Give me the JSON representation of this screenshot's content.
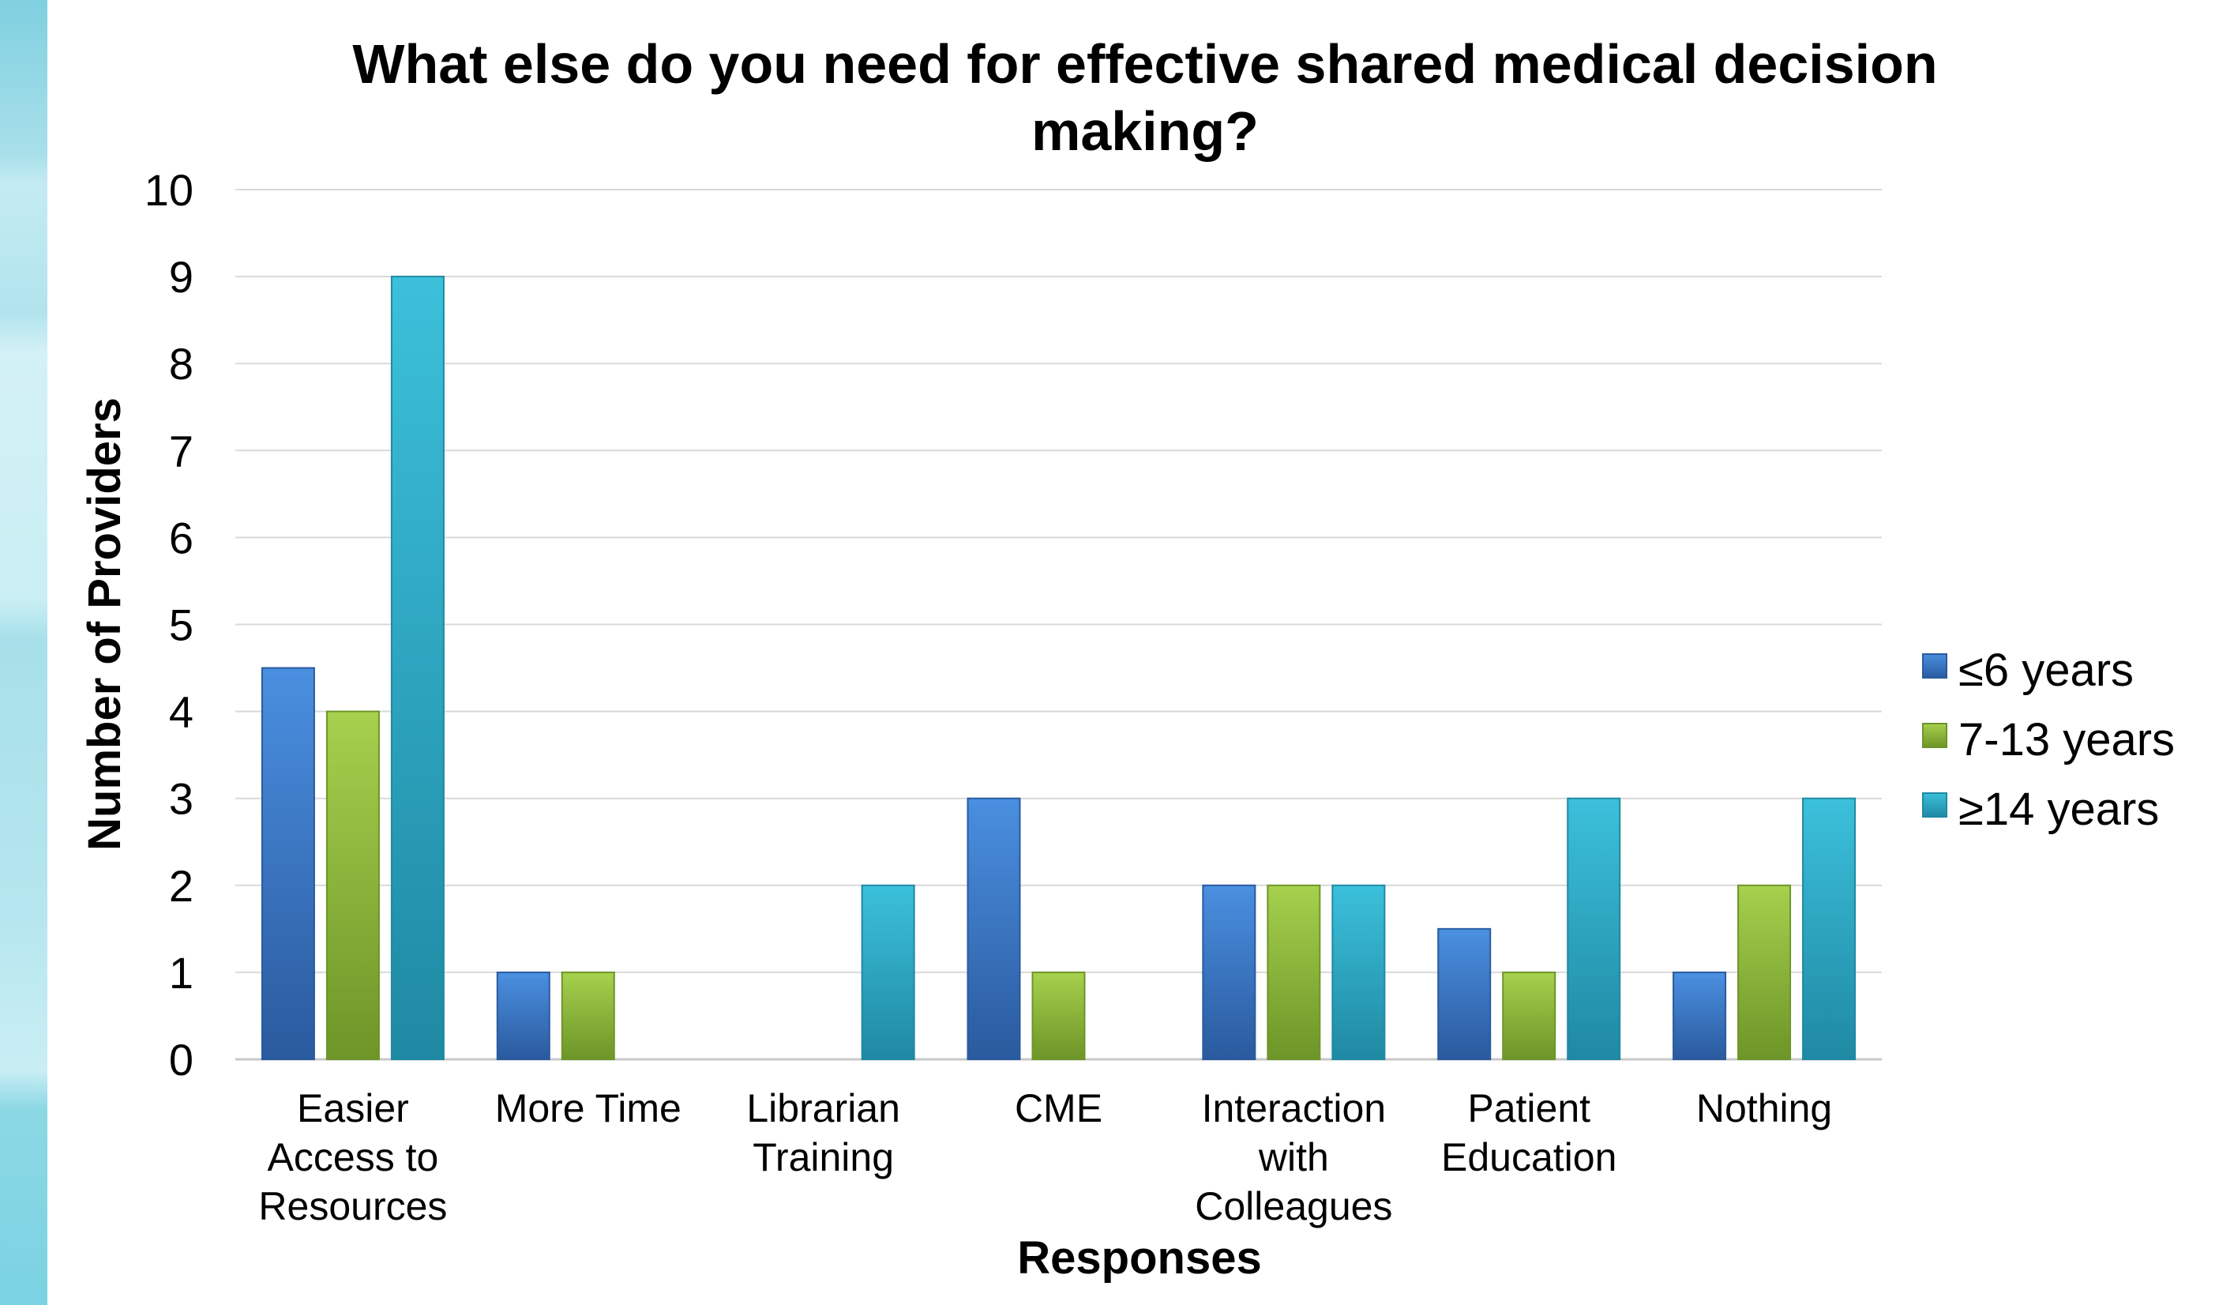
{
  "chart_data": {
    "type": "bar",
    "title": "What else do you need for effective shared medical decision making?",
    "title_lines": [
      "What else do you need for effective shared medical decision",
      "making?"
    ],
    "xlabel": "Responses",
    "ylabel": "Number of Providers",
    "ylim": [
      0,
      10
    ],
    "yticks": [
      0,
      1,
      2,
      3,
      4,
      5,
      6,
      7,
      8,
      9,
      10
    ],
    "grid": true,
    "legend_position": "right",
    "categories": [
      "Easier Access to Resources",
      "More Time",
      "Librarian Training",
      "CME",
      "Interaction with Colleagues",
      "Patient Education",
      "Nothing"
    ],
    "category_lines": [
      [
        "Easier",
        "Access to",
        "Resources"
      ],
      [
        "More Time"
      ],
      [
        "Librarian",
        "Training"
      ],
      [
        "CME"
      ],
      [
        "Interaction",
        "with",
        "Colleagues"
      ],
      [
        "Patient",
        "Education"
      ],
      [
        "Nothing"
      ]
    ],
    "series": [
      {
        "name": "≤6 years",
        "color": "#3a78c9",
        "color_light": "#4a8fe0",
        "color_dark": "#2a5a9e",
        "values": [
          4.5,
          1,
          0,
          3,
          2,
          1.5,
          1
        ]
      },
      {
        "name": "7-13 years",
        "color": "#8bbb3b",
        "color_light": "#a6d04d",
        "color_dark": "#6d9528",
        "values": [
          4,
          1,
          0,
          1,
          2,
          1,
          2
        ]
      },
      {
        "name": "≥14 years",
        "color": "#2aaac8",
        "color_light": "#3cc0db",
        "color_dark": "#1f89a3",
        "values": [
          9,
          0,
          2,
          0,
          2,
          3,
          3
        ]
      }
    ]
  }
}
